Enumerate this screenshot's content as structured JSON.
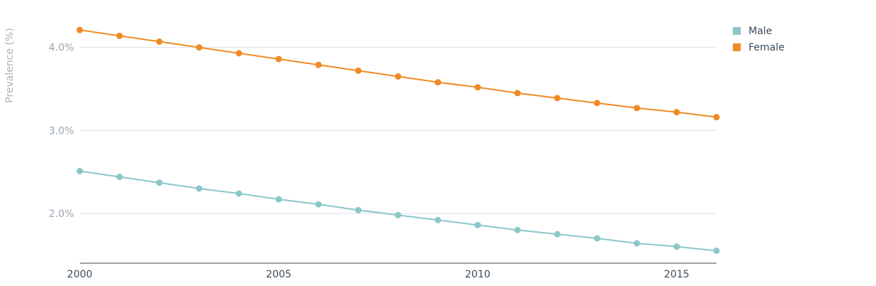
{
  "chart_data": {
    "type": "line",
    "title": "",
    "xlabel": "",
    "ylabel": "Prevalence (%)",
    "x": [
      2000,
      2001,
      2002,
      2003,
      2004,
      2005,
      2006,
      2007,
      2008,
      2009,
      2010,
      2011,
      2012,
      2013,
      2014,
      2015,
      2016
    ],
    "x_ticks": [
      2000,
      2005,
      2010,
      2015
    ],
    "x_tick_labels": [
      "2000",
      "2005",
      "2010",
      "2015"
    ],
    "xlim": [
      2000,
      2016
    ],
    "y_ticks": [
      2.0,
      3.0,
      4.0
    ],
    "y_tick_labels": [
      "2.0%",
      "3.0%",
      "4.0%"
    ],
    "ylim": [
      1.4,
      4.4
    ],
    "grid": true,
    "legend_position": "top-right",
    "series": [
      {
        "name": "Male",
        "color": "#8ac7c9",
        "values": [
          2.51,
          2.44,
          2.37,
          2.3,
          2.24,
          2.17,
          2.11,
          2.04,
          1.98,
          1.92,
          1.86,
          1.8,
          1.75,
          1.7,
          1.64,
          1.6,
          1.55
        ]
      },
      {
        "name": "Female",
        "color": "#f08a24",
        "values": [
          4.21,
          4.14,
          4.07,
          4.0,
          3.93,
          3.86,
          3.79,
          3.72,
          3.65,
          3.58,
          3.52,
          3.45,
          3.39,
          3.33,
          3.27,
          3.22,
          3.16
        ]
      }
    ]
  }
}
